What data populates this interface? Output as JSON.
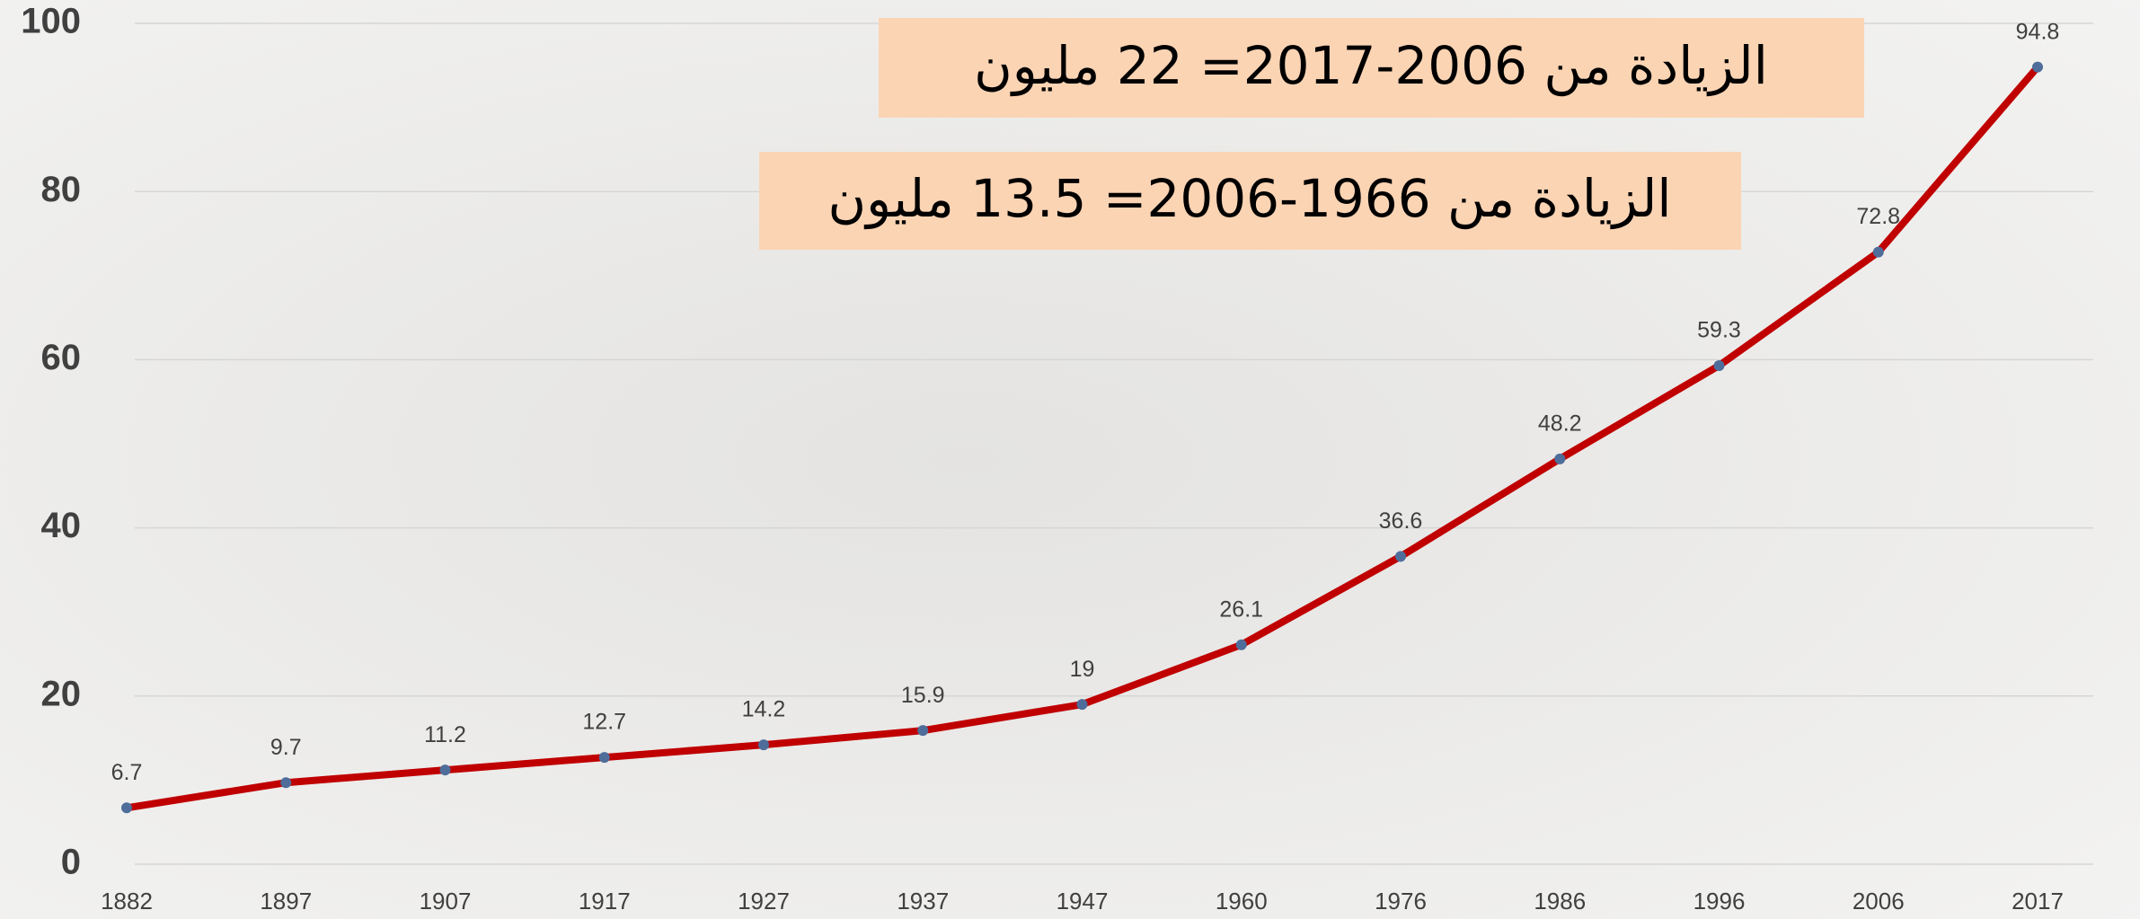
{
  "chart_data": {
    "type": "line",
    "categories": [
      "1882",
      "1897",
      "1907",
      "1917",
      "1927",
      "1937",
      "1947",
      "1960",
      "1976",
      "1986",
      "1996",
      "2006",
      "2017"
    ],
    "values": [
      6.7,
      9.7,
      11.2,
      12.7,
      14.2,
      15.9,
      19,
      26.1,
      36.6,
      48.2,
      59.3,
      72.8,
      94.8
    ],
    "color": "#c00000",
    "marker_color": "#4f6d9a",
    "ylim": [
      0,
      100
    ],
    "yticks": [
      0,
      20,
      40,
      60,
      80,
      100
    ],
    "grid": true,
    "annotations": [
      "الزيادة من 2006-2017= 22 مليون",
      "الزيادة من 1966-2006= 13.5 مليون"
    ]
  }
}
